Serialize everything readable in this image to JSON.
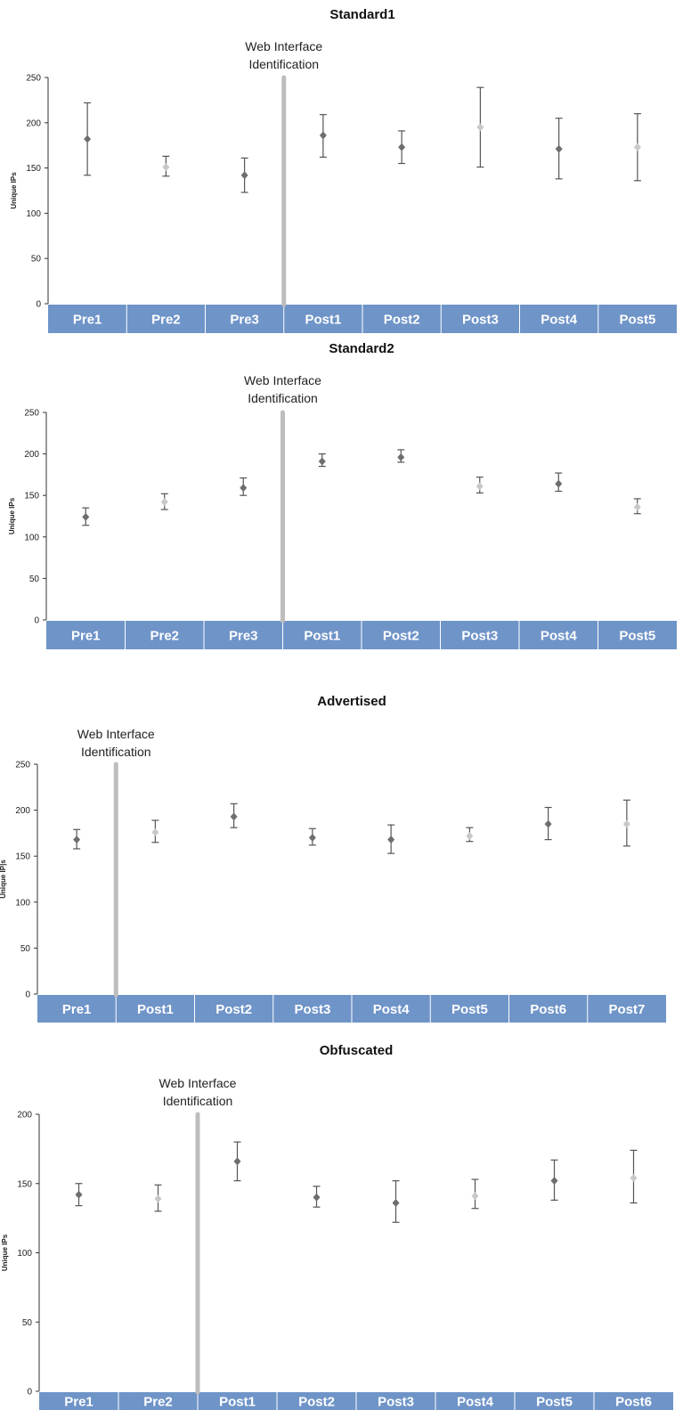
{
  "colors": {
    "category_bar": "#6f94c8",
    "category_divider": "#ffffff",
    "axis": "#333333",
    "errorbar": "#555555",
    "marker_dark": "#6e6e6e",
    "marker_light": "#c8c8c8"
  },
  "chart_data": [
    {
      "type": "scatter",
      "title": "Standard1",
      "ylabel": "Unique IPs",
      "ylim": [
        0,
        250
      ],
      "yticks": [
        0,
        50,
        100,
        150,
        200,
        250
      ],
      "categories": [
        "Pre1",
        "Pre2",
        "Pre3",
        "Post1",
        "Post2",
        "Post3",
        "Post4",
        "Post5"
      ],
      "values": [
        182,
        151,
        142,
        186,
        173,
        195,
        171,
        173
      ],
      "err_low": [
        142,
        141,
        123,
        162,
        155,
        151,
        138,
        136
      ],
      "err_high": [
        222,
        163,
        161,
        209,
        191,
        239,
        205,
        210
      ],
      "marker_shades": [
        "dark",
        "light",
        "dark",
        "dark",
        "dark",
        "light",
        "dark",
        "light"
      ],
      "annotation": {
        "text_line1": "Web Interface",
        "text_line2": "Identification",
        "after_category_index": 2
      }
    },
    {
      "type": "scatter",
      "title": "Standard2",
      "ylabel": "Unique IPs",
      "ylim": [
        0,
        250
      ],
      "yticks": [
        0,
        50,
        100,
        150,
        200,
        250
      ],
      "categories": [
        "Pre1",
        "Pre2",
        "Pre3",
        "Post1",
        "Post2",
        "Post3",
        "Post4",
        "Post5"
      ],
      "values": [
        124,
        142,
        159,
        191,
        196,
        161,
        164,
        136
      ],
      "err_low": [
        114,
        133,
        150,
        185,
        190,
        153,
        155,
        128
      ],
      "err_high": [
        135,
        152,
        171,
        200,
        205,
        172,
        177,
        146
      ],
      "marker_shades": [
        "dark",
        "light",
        "dark",
        "dark",
        "dark",
        "light",
        "dark",
        "light"
      ],
      "annotation": {
        "text_line1": "Web Interface",
        "text_line2": "Identification",
        "after_category_index": 2
      }
    },
    {
      "type": "scatter",
      "title": "Advertised",
      "ylabel": "Unique IP|s",
      "ylim": [
        0,
        250
      ],
      "yticks": [
        0,
        50,
        100,
        150,
        200,
        250
      ],
      "categories": [
        "Pre1",
        "Post1",
        "Post2",
        "Post3",
        "Post4",
        "Post5",
        "Post6",
        "Post7"
      ],
      "values": [
        168,
        176,
        193,
        170,
        168,
        172,
        185,
        185
      ],
      "err_low": [
        158,
        165,
        181,
        162,
        153,
        166,
        168,
        161
      ],
      "err_high": [
        179,
        189,
        207,
        180,
        184,
        181,
        203,
        211
      ],
      "marker_shades": [
        "dark",
        "light",
        "dark",
        "dark",
        "dark",
        "light",
        "dark",
        "light"
      ],
      "annotation": {
        "text_line1": "Web Interface",
        "text_line2": "Identification",
        "after_category_index": 0
      }
    },
    {
      "type": "scatter",
      "title": "Obfuscated",
      "ylabel": "Unique IPs",
      "ylim": [
        0,
        200
      ],
      "yticks": [
        0,
        50,
        100,
        150,
        200
      ],
      "categories": [
        "Pre1",
        "Pre2",
        "Post1",
        "Post2",
        "Post3",
        "Post4",
        "Post5",
        "Post6"
      ],
      "values": [
        142,
        139,
        166,
        140,
        136,
        141,
        152,
        154
      ],
      "err_low": [
        134,
        130,
        152,
        133,
        122,
        132,
        138,
        136
      ],
      "err_high": [
        150,
        149,
        180,
        148,
        152,
        153,
        167,
        174
      ],
      "marker_shades": [
        "dark",
        "light",
        "dark",
        "dark",
        "dark",
        "light",
        "dark",
        "light"
      ],
      "annotation": {
        "text_line1": "Web Interface",
        "text_line2": "Identification",
        "after_category_index": 1
      }
    }
  ]
}
